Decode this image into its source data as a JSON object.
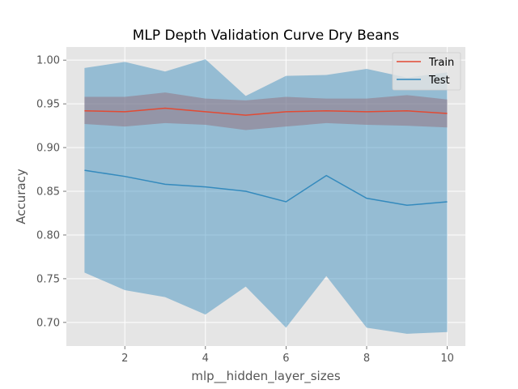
{
  "chart_data": {
    "type": "line",
    "title": "MLP Depth Validation Curve Dry Beans",
    "xlabel": "mlp__hidden_layer_sizes",
    "ylabel": "Accuracy",
    "x": [
      1,
      2,
      3,
      4,
      5,
      6,
      7,
      8,
      9,
      10
    ],
    "xlim": [
      0.55,
      10.45
    ],
    "ylim": [
      0.673,
      1.015
    ],
    "xticks": [
      2,
      4,
      6,
      8,
      10
    ],
    "yticks": [
      0.7,
      0.75,
      0.8,
      0.85,
      0.9,
      0.95,
      1.0
    ],
    "ytick_labels": [
      "0.70",
      "0.75",
      "0.80",
      "0.85",
      "0.90",
      "0.95",
      "1.00"
    ],
    "grid": true,
    "legend_position": "top-right",
    "series": [
      {
        "name": "Train",
        "color": "#E24A33",
        "band_color": "#E24A33",
        "values": [
          0.942,
          0.941,
          0.945,
          0.941,
          0.937,
          0.941,
          0.942,
          0.941,
          0.942,
          0.939
        ],
        "lower": [
          0.927,
          0.924,
          0.928,
          0.926,
          0.92,
          0.924,
          0.928,
          0.926,
          0.925,
          0.923
        ],
        "upper": [
          0.958,
          0.958,
          0.963,
          0.956,
          0.954,
          0.958,
          0.956,
          0.956,
          0.96,
          0.955
        ]
      },
      {
        "name": "Test",
        "color": "#348ABD",
        "band_color": "#348ABD",
        "values": [
          0.874,
          0.867,
          0.858,
          0.855,
          0.85,
          0.838,
          0.868,
          0.842,
          0.834,
          0.838
        ],
        "lower": [
          0.757,
          0.737,
          0.729,
          0.709,
          0.741,
          0.694,
          0.753,
          0.694,
          0.687,
          0.689
        ],
        "upper": [
          0.991,
          0.998,
          0.987,
          1.001,
          0.959,
          0.982,
          0.983,
          0.99,
          0.98,
          0.986
        ]
      }
    ]
  }
}
